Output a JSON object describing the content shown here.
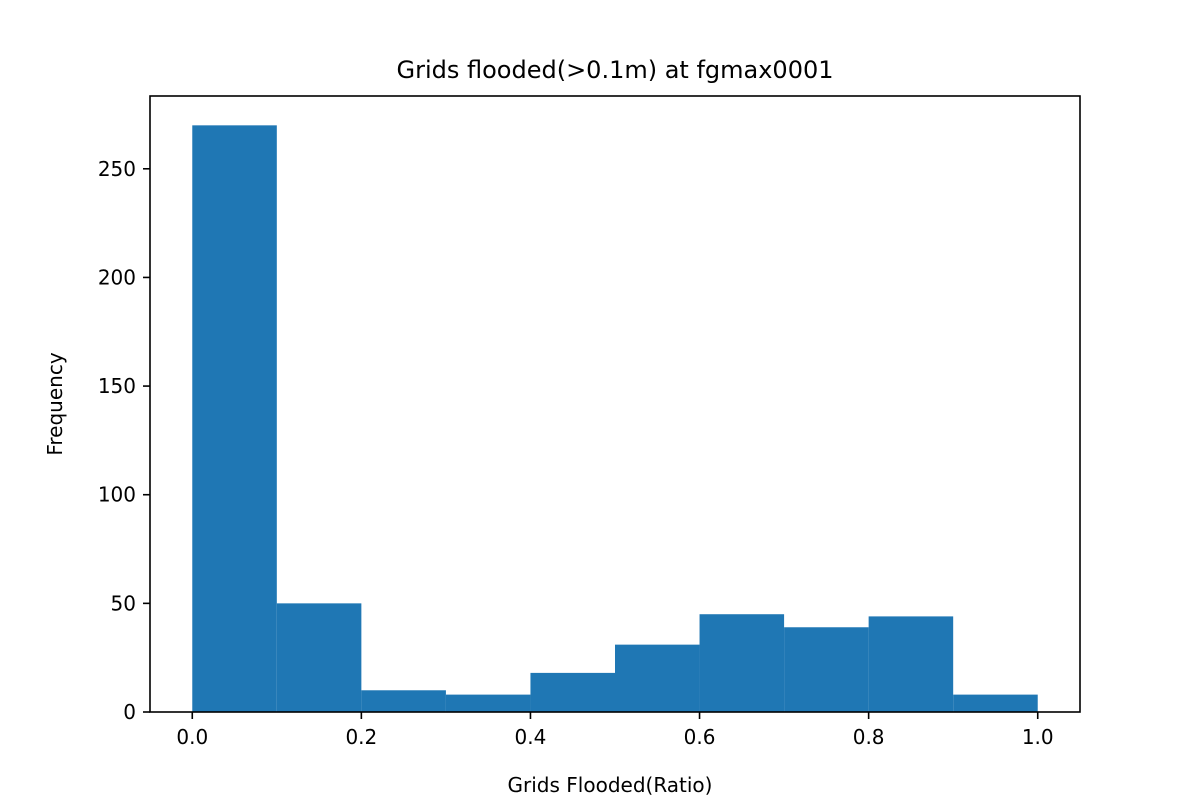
{
  "chart_data": {
    "type": "bar",
    "title": "Grids flooded(>0.1m) at fgmax0001",
    "xlabel": "Grids Flooded(Ratio)",
    "ylabel": "Frequency",
    "bin_edges": [
      0.0,
      0.1,
      0.2,
      0.3,
      0.4,
      0.5,
      0.6,
      0.7,
      0.8,
      0.9,
      1.0
    ],
    "values": [
      270,
      50,
      10,
      8,
      18,
      31,
      45,
      39,
      44,
      8
    ],
    "xlim": [
      -0.05,
      1.05
    ],
    "ylim": [
      0,
      283.5
    ],
    "xticks": [
      0.0,
      0.2,
      0.4,
      0.6,
      0.8,
      1.0
    ],
    "xtick_labels": [
      "0.0",
      "0.2",
      "0.4",
      "0.6",
      "0.8",
      "1.0"
    ],
    "yticks": [
      0,
      50,
      100,
      150,
      200,
      250
    ],
    "ytick_labels": [
      "0",
      "50",
      "100",
      "150",
      "200",
      "250"
    ],
    "grid": false,
    "bar_color": "#1f77b4"
  }
}
